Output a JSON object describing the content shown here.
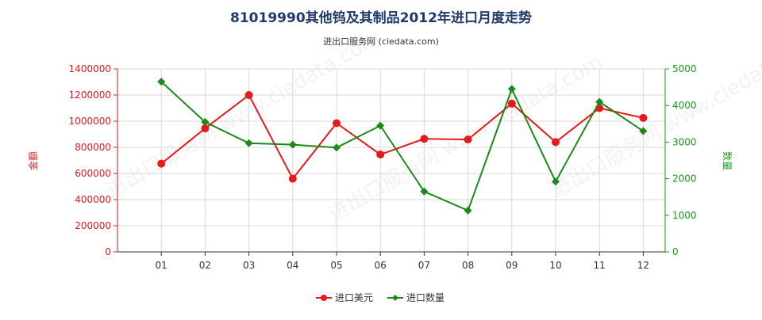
{
  "colors": {
    "left_axis": "#e8191a",
    "right_axis": "#1a9a1a",
    "series_value": "#e8191a",
    "series_qty": "#1a8a1a",
    "grid": "#d9d9d9",
    "title": "#1f3a6e"
  },
  "chart_data": {
    "type": "line",
    "title": "81019990其他钨及其制品2012年进口月度走势",
    "subtitle": "进出口服务网 (ciedata.com)",
    "watermark": "进出口服务网 www.ciedata.com",
    "ylabel_left": "金额",
    "ylabel_right": "数量",
    "categories": [
      "01",
      "02",
      "03",
      "04",
      "05",
      "06",
      "07",
      "08",
      "09",
      "10",
      "11",
      "12"
    ],
    "ylim_left": [
      0,
      1400000
    ],
    "ylim_right": [
      0,
      5000
    ],
    "yticks_left": [
      "0",
      "200000",
      "400000",
      "600000",
      "800000",
      "1000000",
      "1200000",
      "1400000"
    ],
    "yticks_right": [
      "0",
      "1000",
      "2000",
      "3000",
      "4000",
      "5000"
    ],
    "grid": true,
    "legend_position": "bottom",
    "series": [
      {
        "name": "进口美元",
        "axis": "left",
        "marker": "circle",
        "values": [
          675000,
          945000,
          1200000,
          560000,
          985000,
          745000,
          865000,
          860000,
          1135000,
          840000,
          1100000,
          1025000
        ]
      },
      {
        "name": "进口数量",
        "axis": "right",
        "marker": "diamond",
        "values": [
          4650,
          3550,
          2970,
          2930,
          2850,
          3450,
          1650,
          1130,
          4450,
          1920,
          4100,
          3300
        ]
      }
    ]
  }
}
